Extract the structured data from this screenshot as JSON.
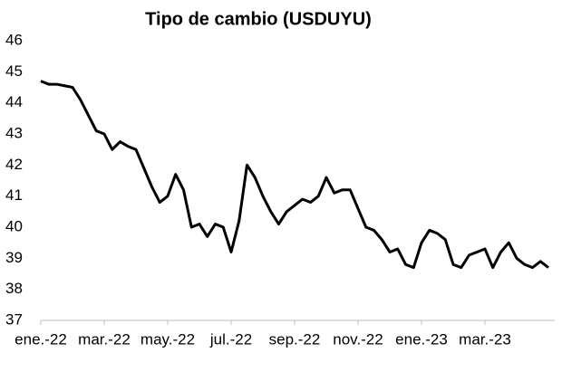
{
  "chart_data": {
    "type": "line",
    "title": "Tipo de cambio (USDUYU)",
    "x": [
      0,
      0.25,
      0.5,
      0.75,
      1,
      1.25,
      1.5,
      1.75,
      2,
      2.25,
      2.5,
      2.75,
      3,
      3.25,
      3.5,
      3.75,
      4,
      4.25,
      4.5,
      4.75,
      5,
      5.25,
      5.5,
      5.75,
      6,
      6.25,
      6.5,
      6.75,
      7,
      7.25,
      7.5,
      7.75,
      8,
      8.25,
      8.5,
      8.75,
      9,
      9.25,
      9.5,
      9.75,
      10,
      10.25,
      10.5,
      10.75,
      11,
      11.25,
      11.5,
      11.75,
      12,
      12.25,
      12.5,
      12.75,
      13,
      13.25,
      13.5,
      13.75,
      14,
      14.25,
      14.5,
      14.75,
      15,
      15.25,
      15.5,
      15.75,
      16
    ],
    "series": [
      {
        "name": "USDUYU",
        "color": "#000000",
        "values": [
          44.7,
          44.6,
          44.6,
          44.55,
          44.5,
          44.1,
          43.6,
          43.1,
          43.0,
          42.5,
          42.75,
          42.6,
          42.5,
          41.9,
          41.3,
          40.8,
          41.0,
          41.7,
          41.2,
          40.0,
          40.1,
          39.7,
          40.1,
          40.0,
          39.2,
          40.2,
          42.0,
          41.6,
          41.0,
          40.5,
          40.1,
          40.5,
          40.7,
          40.9,
          40.8,
          41.0,
          41.6,
          41.1,
          41.2,
          41.2,
          40.6,
          40.0,
          39.9,
          39.6,
          39.2,
          39.3,
          38.8,
          38.7,
          39.5,
          39.9,
          39.8,
          39.6,
          38.8,
          38.7,
          39.1,
          39.2,
          39.3,
          38.7,
          39.2,
          39.5,
          39.0,
          38.8,
          38.7,
          38.9,
          38.7
        ]
      }
    ],
    "xlim": [
      0,
      16.2
    ],
    "xticks": [
      {
        "value": 0,
        "label": "ene.-22"
      },
      {
        "value": 2,
        "label": "mar.-22"
      },
      {
        "value": 4,
        "label": "may.-22"
      },
      {
        "value": 6,
        "label": "jul.-22"
      },
      {
        "value": 8,
        "label": "sep.-22"
      },
      {
        "value": 10,
        "label": "nov.-22"
      },
      {
        "value": 12,
        "label": "ene.-23"
      },
      {
        "value": 14,
        "label": "mar.-23"
      }
    ],
    "ylim": [
      37,
      46
    ],
    "yticks": [
      37,
      38,
      39,
      40,
      41,
      42,
      43,
      44,
      45,
      46
    ],
    "grid": false
  }
}
